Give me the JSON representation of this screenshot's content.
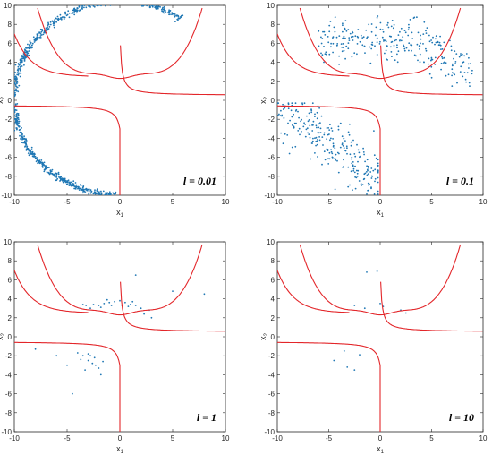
{
  "chart_data": [
    {
      "type": "scatter",
      "label": "l = 0.01",
      "xlabel": "x",
      "xlabel_sub": "1",
      "ylabel": "x",
      "ylabel_sub": "2",
      "xlim": [
        -10,
        10
      ],
      "ylim": [
        -10,
        10
      ],
      "xticks": [
        -10,
        -5,
        0,
        5,
        10
      ],
      "yticks": [
        -10,
        -8,
        -6,
        -4,
        -2,
        0,
        2,
        4,
        6,
        8,
        10
      ],
      "scatter_style": "circle-arcs",
      "colors": {
        "points": "#1f77b4",
        "curves": "#e3262a"
      }
    },
    {
      "type": "scatter",
      "label": "l = 0.1",
      "xlabel": "x",
      "xlabel_sub": "1",
      "ylabel": "x",
      "ylabel_sub": "2",
      "xlim": [
        -10,
        10
      ],
      "ylim": [
        -10,
        10
      ],
      "xticks": [
        -10,
        -5,
        0,
        5,
        10
      ],
      "yticks": [
        -10,
        -8,
        -6,
        -4,
        -2,
        0,
        2,
        4,
        6,
        8,
        10
      ],
      "scatter_style": "clouds",
      "colors": {
        "points": "#1f77b4",
        "curves": "#e3262a"
      }
    },
    {
      "type": "scatter",
      "label": "l = 1",
      "xlabel": "x",
      "xlabel_sub": "1",
      "ylabel": "x",
      "ylabel_sub": "2",
      "xlim": [
        -10,
        10
      ],
      "ylim": [
        -10,
        10
      ],
      "xticks": [
        -10,
        -5,
        0,
        5,
        10
      ],
      "yticks": [
        -10,
        -8,
        -6,
        -4,
        -2,
        0,
        2,
        4,
        6,
        8,
        10
      ],
      "points": [
        [
          -3.2,
          3.3
        ],
        [
          -2.5,
          3.4
        ],
        [
          -2,
          3.3
        ],
        [
          -1.5,
          3.5
        ],
        [
          -1,
          3.6
        ],
        [
          -0.5,
          3.7
        ],
        [
          0,
          3.8
        ],
        [
          0.5,
          3.6
        ],
        [
          1,
          3.4
        ],
        [
          1.5,
          3.3
        ],
        [
          2,
          3
        ],
        [
          2.3,
          2.4
        ],
        [
          2.8,
          2.8
        ],
        [
          -1.8,
          3.1
        ],
        [
          -0.8,
          3.3
        ],
        [
          0.8,
          3.2
        ],
        [
          -2.8,
          3
        ],
        [
          -3.5,
          3.4
        ],
        [
          -1.2,
          3.9
        ],
        [
          0.2,
          3.3
        ],
        [
          1.2,
          3.7
        ],
        [
          3,
          2
        ],
        [
          1.5,
          6.5
        ],
        [
          5,
          4.8
        ],
        [
          8,
          4.5
        ],
        [
          -8,
          -1.3
        ],
        [
          -6,
          -2
        ],
        [
          -5,
          -3
        ],
        [
          -4.5,
          -6
        ],
        [
          -4,
          -1.7
        ],
        [
          -3.5,
          -2
        ],
        [
          -3,
          -1.8
        ],
        [
          -3,
          -2.5
        ],
        [
          -2.6,
          -2.8
        ],
        [
          -2.3,
          -3
        ],
        [
          -2,
          -3.3
        ],
        [
          -1.8,
          -4
        ],
        [
          -3.7,
          -2.4
        ],
        [
          -2.8,
          -2
        ],
        [
          -2.4,
          -2.2
        ],
        [
          -3.3,
          -3.5
        ],
        [
          -1.6,
          -2.6
        ]
      ],
      "colors": {
        "points": "#1f77b4",
        "curves": "#e3262a"
      }
    },
    {
      "type": "scatter",
      "label": "l = 10",
      "xlabel": "x",
      "xlabel_sub": "1",
      "ylabel": "x",
      "ylabel_sub": "2",
      "xlim": [
        -10,
        10
      ],
      "ylim": [
        -10,
        10
      ],
      "xticks": [
        -10,
        -5,
        0,
        5,
        10
      ],
      "yticks": [
        -10,
        -8,
        -6,
        -4,
        -2,
        0,
        2,
        4,
        6,
        8,
        10
      ],
      "points": [
        [
          -1.3,
          6.8
        ],
        [
          -0.3,
          6.9
        ],
        [
          -2.5,
          3.3
        ],
        [
          -1.5,
          3
        ],
        [
          0,
          3.5
        ],
        [
          0.3,
          3.2
        ],
        [
          2,
          2.8
        ],
        [
          2.5,
          2.5
        ],
        [
          -3.5,
          -1.5
        ],
        [
          -4.5,
          -2.5
        ],
        [
          -3.2,
          -3.2
        ],
        [
          -2,
          -1.9
        ],
        [
          -2.5,
          -3.5
        ]
      ],
      "colors": {
        "points": "#1f77b4",
        "curves": "#e3262a"
      }
    }
  ]
}
